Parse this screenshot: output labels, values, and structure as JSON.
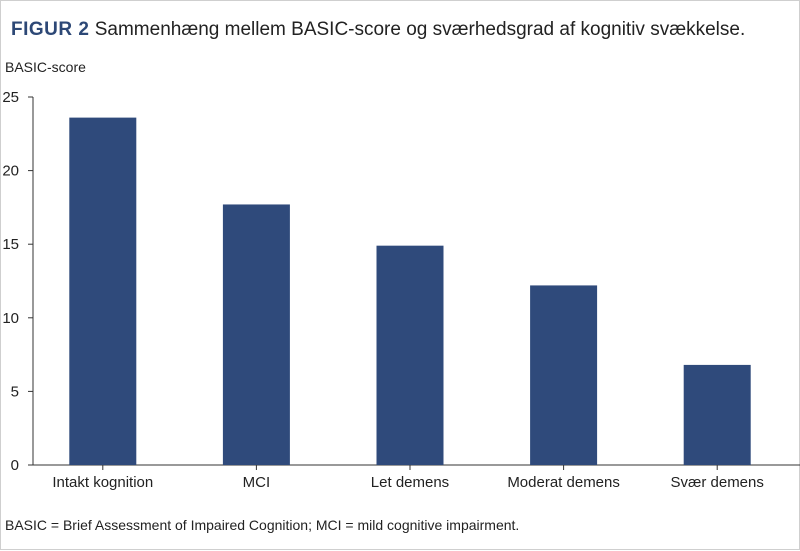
{
  "figure": {
    "label": "FIGUR 2",
    "title": "Sammenhæng mellem BASIC-score og sværhedsgrad af kognitiv svækkelse."
  },
  "caption": "BASIC = Brief Assessment of Impaired Cognition; MCI = mild cognitive impairment.",
  "colors": {
    "bar": "#2f4a7b",
    "title_label": "#2d4876",
    "axis": "#333333"
  },
  "chart_data": {
    "type": "bar",
    "title": "Sammenhæng mellem BASIC-score og sværhedsgrad af kognitiv svækkelse.",
    "xlabel": "",
    "ylabel": "BASIC-score",
    "categories": [
      "Intakt kognition",
      "MCI",
      "Let demens",
      "Moderat demens",
      "Svær demens"
    ],
    "values": [
      23.6,
      17.7,
      14.9,
      12.2,
      6.8
    ],
    "ylim": [
      0,
      25
    ],
    "yticks": [
      0,
      5,
      10,
      15,
      20,
      25
    ],
    "grid": false,
    "legend": "none"
  }
}
